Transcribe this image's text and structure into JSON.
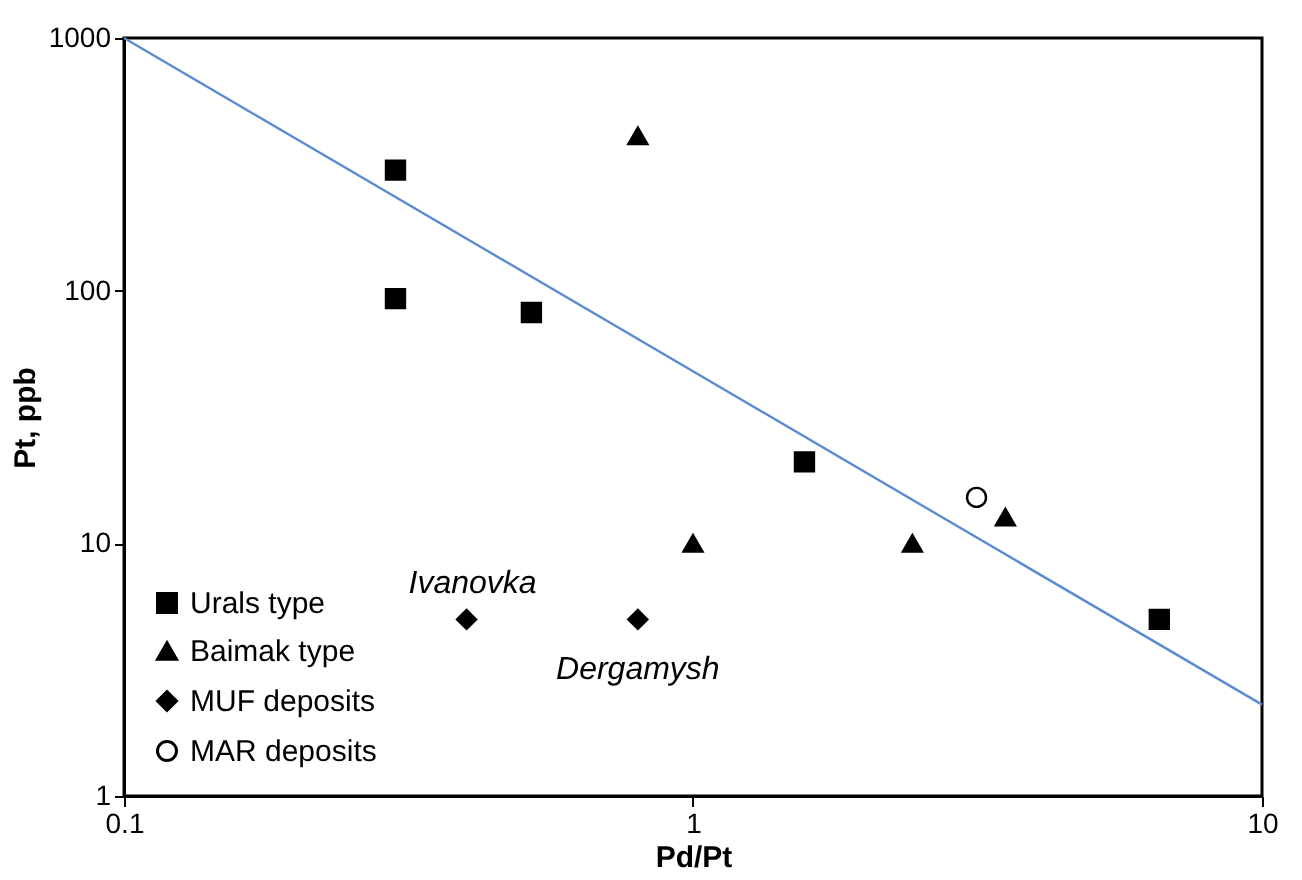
{
  "chart_data": {
    "type": "scatter",
    "xlabel": "Pd/Pt",
    "ylabel": "Pt, ppb",
    "log": "xy",
    "grid": false,
    "legend": "bottom left",
    "xlim": [
      0.1,
      10
    ],
    "xticks": [
      0.1,
      1,
      10
    ],
    "ylim": [
      1,
      1000
    ],
    "yticks": [
      1,
      10,
      100,
      1000
    ],
    "series": [
      {
        "name": "Urals type",
        "color": "#000000",
        "marker": "square",
        "x": [
          0.3,
          0.3,
          0.52,
          1.57,
          6.6
        ],
        "values": [
          300,
          93,
          82,
          21,
          5
        ]
      },
      {
        "name": "Baimak type",
        "color": "#000000",
        "marker": "triangle",
        "x": [
          0.8,
          1,
          2.43,
          3.54
        ],
        "values": [
          410,
          10,
          10,
          12.7
        ]
      },
      {
        "name": "MUF deposits",
        "color": "#000000",
        "marker": "diamond",
        "x": [
          0.4,
          0.8
        ],
        "values": [
          5,
          5
        ]
      },
      {
        "name": "MAR deposits",
        "color": "#ffffff",
        "marker": "circle",
        "x": [
          3.15
        ],
        "values": [
          15.2
        ]
      },
      {
        "type": "line",
        "color": "#5b8bd0",
        "marker": "none",
        "x": [
          0.1,
          10
        ],
        "values": [
          1000,
          2.3
        ]
      }
    ],
    "annotations": [
      {
        "text": "Ivanovka",
        "x": 0.4,
        "y": 5
      },
      {
        "text": "Dergamysh",
        "x": 0.8,
        "y": 5
      }
    ]
  }
}
